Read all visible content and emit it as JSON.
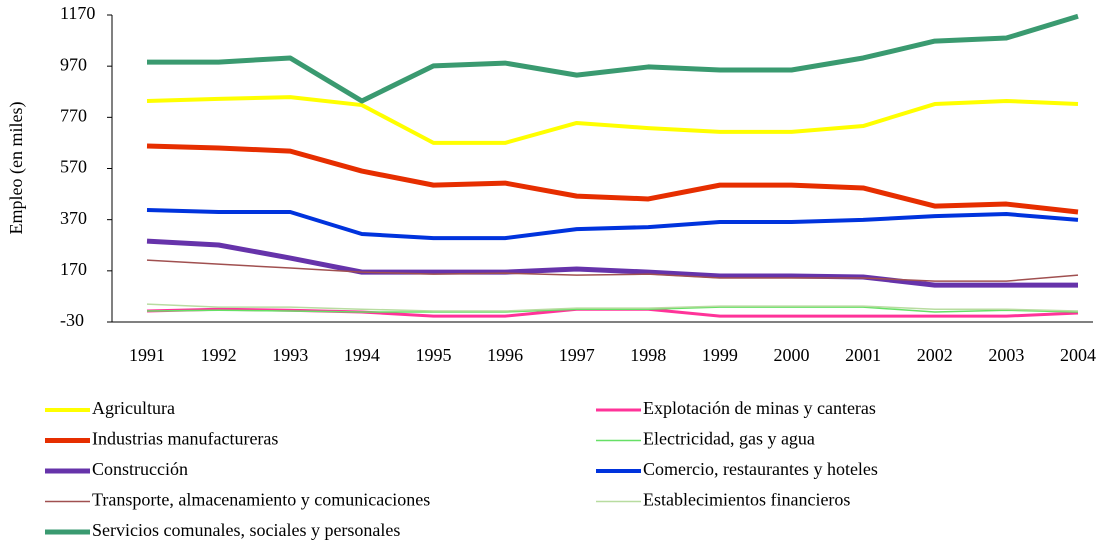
{
  "chart_data": {
    "type": "line",
    "y_label": "Empleo (en miles)",
    "categories": [
      "1991",
      "1992",
      "1993",
      "1994",
      "1995",
      "1996",
      "1997",
      "1998",
      "1999",
      "2000",
      "2001",
      "2002",
      "2003",
      "2004"
    ],
    "ylim": [
      -30,
      1170
    ],
    "yticks": [
      -30,
      170,
      370,
      570,
      770,
      970,
      1170
    ],
    "legend": "bottom",
    "series": [
      {
        "name": "Agricultura",
        "color": "#ffff00",
        "values": [
          834,
          842,
          849,
          818,
          670,
          670,
          748,
          728,
          713,
          713,
          736,
          822,
          834,
          822
        ]
      },
      {
        "name": "Explotación de minas y canteras",
        "color": "#ff3399",
        "values": [
          13,
          20,
          16,
          9,
          -7,
          -7,
          20,
          20,
          -7,
          -7,
          -7,
          -7,
          -7,
          5
        ]
      },
      {
        "name": "Industrias manufactureras",
        "color": "#e62e00",
        "values": [
          658,
          650,
          638,
          560,
          505,
          513,
          462,
          451,
          505,
          505,
          494,
          423,
          431,
          400
        ]
      },
      {
        "name": "Electricidad, gas y agua",
        "color": "#66e066",
        "values": [
          13,
          16,
          13,
          9,
          9,
          9,
          20,
          20,
          28,
          28,
          28,
          9,
          16,
          9
        ]
      },
      {
        "name": "Construcción",
        "color": "#6633aa",
        "values": [
          286,
          271,
          220,
          165,
          165,
          165,
          177,
          165,
          150,
          150,
          146,
          114,
          114,
          114
        ]
      },
      {
        "name": "Comercio, restaurantes y hoteles",
        "color": "#0033dd",
        "values": [
          408,
          400,
          400,
          314,
          298,
          298,
          333,
          341,
          361,
          361,
          369,
          384,
          392,
          369
        ]
      },
      {
        "name": "Transporte, almacenamiento y comunicaciones",
        "color": "#a05050",
        "values": [
          212,
          196,
          181,
          165,
          157,
          161,
          153,
          157,
          142,
          142,
          142,
          130,
          130,
          153
        ]
      },
      {
        "name": "Establecimientos financieros",
        "color": "#b8dca0",
        "values": [
          40,
          28,
          28,
          20,
          13,
          13,
          24,
          24,
          32,
          32,
          32,
          20,
          20,
          13
        ]
      },
      {
        "name": "Servicios comunales, sociales y personales",
        "color": "#3a9a70",
        "values": [
          986,
          986,
          1002,
          834,
          971,
          982,
          935,
          967,
          955,
          955,
          1002,
          1068,
          1080,
          1165
        ]
      }
    ]
  }
}
